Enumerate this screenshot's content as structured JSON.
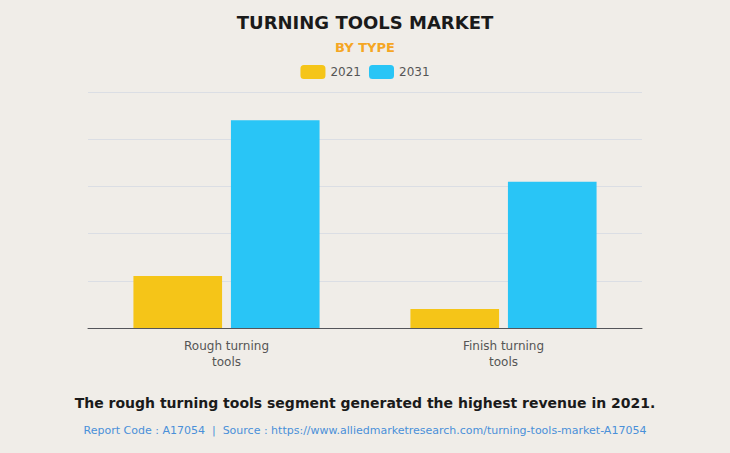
{
  "chart_data": {
    "type": "bar",
    "title": "TURNING TOOLS MARKET",
    "subtitle": "BY TYPE",
    "categories": [
      "Rough turning\ntools",
      "Finish turning\ntools"
    ],
    "series": [
      {
        "name": "2021",
        "color": "#F5C518",
        "values": [
          22,
          8
        ]
      },
      {
        "name": "2031",
        "color": "#29C5F6",
        "values": [
          88,
          62
        ]
      }
    ],
    "ylim": [
      0,
      100
    ],
    "yticks": [
      0,
      20,
      40,
      60,
      80,
      100
    ],
    "grid": true,
    "tick_labels": "x",
    "legend": "top",
    "annotations": [
      "The rough turning tools segment generated the highest revenue in 2021.",
      "Report Code : A17054  |  Source : https://www.alliedmarketresearch.com/turning-tools-market-A17054"
    ]
  }
}
